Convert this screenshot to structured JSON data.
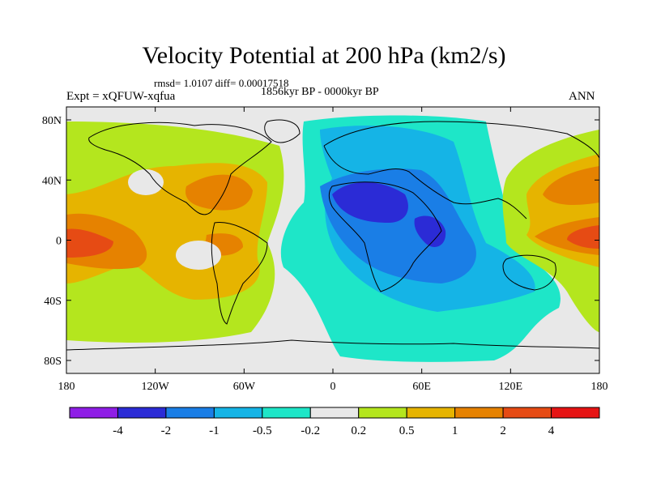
{
  "title": "Velocity Potential at 200 hPa (km2/s)",
  "stats": "rmsd= 1.0107 diff= 0.00017518",
  "period": "1856kyr BP - 0000kyr BP",
  "experiment": "Expt = xQFUW-xqfua",
  "season": "ANN",
  "map": {
    "lat_ticks": [
      "80N",
      "40N",
      "0",
      "40S",
      "80S"
    ],
    "lon_ticks": [
      "180",
      "120W",
      "60W",
      "0",
      "60E",
      "120E",
      "180"
    ]
  },
  "colorbar": {
    "labels": [
      "-4",
      "-2",
      "-1",
      "-0.5",
      "-0.2",
      "0.2",
      "0.5",
      "1",
      "2",
      "4"
    ],
    "colors": [
      "#8f1ee6",
      "#2b2bd6",
      "#1a7ee6",
      "#15b4e6",
      "#1ee6c8",
      "#e8e8e8",
      "#b4e61e",
      "#e6b400",
      "#e68200",
      "#e64b14",
      "#e61414"
    ]
  }
}
